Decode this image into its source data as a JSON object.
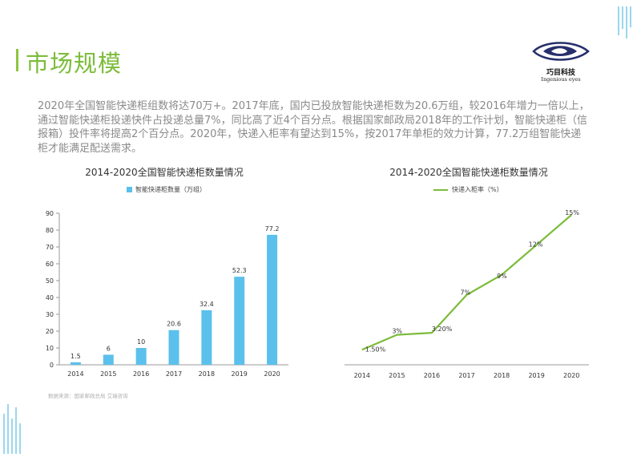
{
  "page": {
    "title": "市场规模",
    "logo_name": "巧目科技",
    "logo_sub": "Ingenious eyes",
    "intro": "2020年全国智能快递柜组数将达70万+。2017年底，国内已投放智能快递柜数为20.6万组，较2016年增力一倍以上，通过智能快递柜投递快件占投递总量7%，同比高了近4个百分点。根据国家邮政局2018年的工作计划，智能快递柜（信报箱）投件率将提高2个百分点。2020年，快递入柜率有望达到15%，按2017年单柜的效力计算，77.2万组智能快递柜才能满足配送需求。",
    "source": "数据来源：国家邮政总局 艾瑞咨询"
  },
  "chart_data": [
    {
      "type": "bar",
      "title": "2014-2020全国智能快递柜数量情况",
      "categories": [
        "2014",
        "2015",
        "2016",
        "2017",
        "2018",
        "2019",
        "2020"
      ],
      "series": [
        {
          "name": "智能快递柜数量（万组）",
          "values": [
            1.5,
            6,
            10,
            20.6,
            32.4,
            52.3,
            77.2
          ]
        }
      ],
      "data_labels": [
        "1.5",
        "6",
        "10",
        "20.6",
        "32.4",
        "52.3",
        "77.2"
      ],
      "ylim": [
        0,
        90
      ],
      "yticks": [
        0,
        10,
        20,
        30,
        40,
        50,
        60,
        70,
        80,
        90
      ],
      "grid": false,
      "legend": "top",
      "color": "#5bc0eb"
    },
    {
      "type": "line",
      "title": "2014-2020全国智能快递柜数量情况",
      "categories": [
        "2014",
        "2015",
        "2016",
        "2017",
        "2018",
        "2019",
        "2020"
      ],
      "series": [
        {
          "name": "快递入柜率（%）",
          "values": [
            1.5,
            3,
            3.2,
            7,
            9,
            12,
            15
          ]
        }
      ],
      "data_labels": [
        "1.50%",
        "3%",
        "3.20%",
        "7%",
        "9%",
        "12%",
        "15%"
      ],
      "ylim": [
        0,
        15
      ],
      "y_axis_visible": false,
      "grid": false,
      "legend": "top",
      "color": "#7cbc3a"
    }
  ],
  "colors": {
    "accent_green": "#7cbc3a",
    "bar_blue": "#5bc0eb",
    "logo_navy": "#27306b"
  }
}
